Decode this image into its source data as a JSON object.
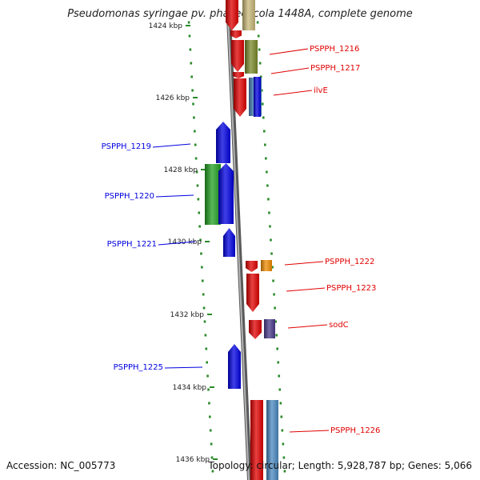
{
  "title": "Pseudomonas syringae pv. phaseolicola 1448A, complete genome",
  "accession": "Accession: NC_005773",
  "topology": "Topology: circular; Length: 5,928,787 bp; Genes: 5,066",
  "colors": {
    "forward": "#e00000",
    "reverse": "#0000e0",
    "backbone": "#888888",
    "tick": "#2a8a2a",
    "green_feature": "#22a022",
    "olive_feature": "#7a8a2a",
    "steel_feature": "#4a88c0",
    "orange_feature": "#f08c00",
    "purple_feature": "#4a3a8a",
    "tan_feature": "#c8b878"
  },
  "scale_labels": [
    "1424 kbp",
    "1426 kbp",
    "1428 kbp",
    "1430 kbp",
    "1432 kbp",
    "1434 kbp",
    "1436 kbp"
  ],
  "genes": [
    {
      "label": "PSPPH_1216",
      "strand": "forward"
    },
    {
      "label": "PSPPH_1217",
      "strand": "forward"
    },
    {
      "label": "ilvE",
      "strand": "forward"
    },
    {
      "label": "PSPPH_1219",
      "strand": "reverse"
    },
    {
      "label": "PSPPH_1220",
      "strand": "reverse"
    },
    {
      "label": "PSPPH_1221",
      "strand": "reverse"
    },
    {
      "label": "PSPPH_1222",
      "strand": "forward"
    },
    {
      "label": "PSPPH_1223",
      "strand": "forward"
    },
    {
      "label": "sodC",
      "strand": "forward"
    },
    {
      "label": "PSPPH_1225",
      "strand": "reverse"
    },
    {
      "label": "PSPPH_1226",
      "strand": "forward"
    }
  ]
}
